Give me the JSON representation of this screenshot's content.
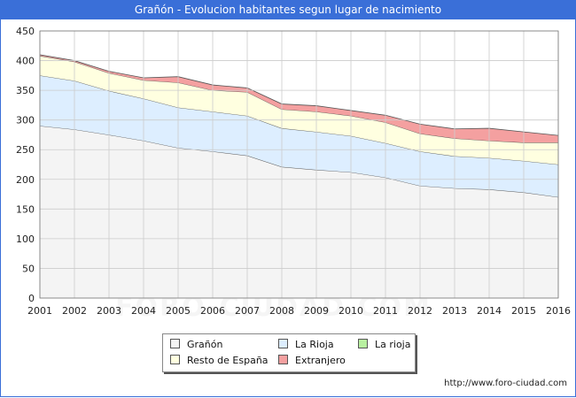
{
  "header": {
    "title": "Grañón - Evolucion habitantes segun lugar de nacimiento"
  },
  "footer": {
    "source": "http://www.foro-ciudad.com"
  },
  "watermark": {
    "text": "FORO-CIUDAD.COM"
  },
  "chart_data": {
    "type": "area",
    "stacked": true,
    "title": "Grañón - Evolucion habitantes segun lugar de nacimiento",
    "xlabel": "",
    "ylabel": "",
    "x": [
      "2001",
      "2002",
      "2003",
      "2004",
      "2005",
      "2006",
      "2007",
      "2008",
      "2009",
      "2010",
      "2011",
      "2012",
      "2013",
      "2014",
      "2015",
      "2016"
    ],
    "ylim": [
      0,
      450
    ],
    "yticks": [
      0,
      50,
      100,
      150,
      200,
      250,
      300,
      350,
      400,
      450
    ],
    "grid": true,
    "legend_position": "bottom",
    "series": [
      {
        "name": "Grañón",
        "color": "#f4f4f4",
        "values": [
          290,
          284,
          275,
          265,
          253,
          247,
          240,
          221,
          216,
          212,
          203,
          189,
          185,
          183,
          178,
          170
        ]
      },
      {
        "name": "La Rioja",
        "color": "#ddeeff",
        "values": [
          85,
          82,
          74,
          71,
          68,
          67,
          67,
          65,
          64,
          61,
          58,
          58,
          54,
          53,
          53,
          55
        ]
      },
      {
        "name": "Resto de España",
        "color": "#ffffe0",
        "values": [
          33,
          32,
          30,
          31,
          42,
          36,
          40,
          32,
          34,
          34,
          35,
          30,
          30,
          29,
          31,
          37
        ]
      },
      {
        "name": "Extranjero",
        "color": "#f4a0a0",
        "values": [
          2,
          2,
          3,
          4,
          10,
          9,
          7,
          9,
          10,
          9,
          12,
          16,
          16,
          21,
          18,
          12
        ]
      },
      {
        "name": "La rioja",
        "color": "#b8f0a0",
        "values": [
          0,
          0,
          0,
          0,
          0,
          0,
          0,
          0,
          0,
          0,
          0,
          0,
          0,
          0,
          0,
          0
        ]
      }
    ]
  }
}
